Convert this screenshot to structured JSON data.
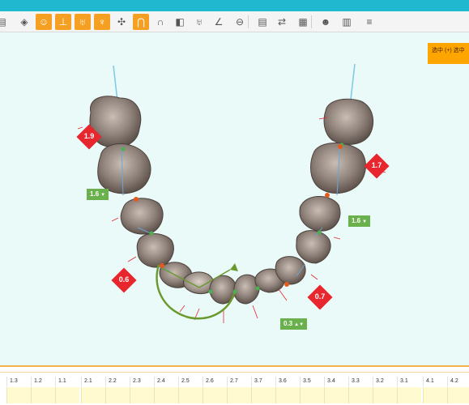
{
  "toolbar": {
    "tools": [
      {
        "name": "menu-icon",
        "glyph": "▤",
        "active": false
      },
      {
        "name": "tooth-model-icon",
        "glyph": "◈",
        "active": false
      },
      {
        "name": "smile-icon",
        "glyph": "☺",
        "active": true
      },
      {
        "name": "measure-icon",
        "glyph": "⊥",
        "active": true
      },
      {
        "name": "tooth-icon",
        "glyph": "♅",
        "active": true
      },
      {
        "name": "tooth-alt-icon",
        "glyph": "♆",
        "active": true
      },
      {
        "name": "tooth-move-icon",
        "glyph": "✣",
        "active": false
      },
      {
        "name": "arch-box-icon",
        "glyph": "⋂",
        "active": true
      },
      {
        "name": "arch-icon",
        "glyph": "∩",
        "active": false
      },
      {
        "name": "split-icon",
        "glyph": "◧",
        "active": false
      },
      {
        "name": "tooth-gray-icon",
        "glyph": "♅",
        "active": false
      },
      {
        "name": "graph-icon",
        "glyph": "∠",
        "active": false
      },
      {
        "name": "ruler-icon",
        "glyph": "⊖",
        "active": false
      },
      {
        "name": "document-icon",
        "glyph": "▤",
        "active": false
      },
      {
        "name": "rotate-icon",
        "glyph": "⇄",
        "active": false
      },
      {
        "name": "clipboard-icon",
        "glyph": "▦",
        "active": false
      },
      {
        "name": "head-icon",
        "glyph": "☻",
        "active": false
      },
      {
        "name": "calendar-icon",
        "glyph": "▥",
        "active": false
      },
      {
        "name": "notes-icon",
        "glyph": "≡",
        "active": false
      }
    ]
  },
  "status": {
    "text": "选中 (+) 选中"
  },
  "badges": {
    "red": [
      "1.9",
      "1.7",
      "0.6",
      "0.7"
    ],
    "green": [
      "1.6",
      "1.6",
      "0.3"
    ]
  },
  "timeline": {
    "labels": [
      "1.3",
      "1.2",
      "1.1",
      "2.1",
      "2.2",
      "2.3",
      "2.4",
      "2.5",
      "2.6",
      "2.7",
      "3.7",
      "3.6",
      "3.5",
      "3.4",
      "3.3",
      "3.2",
      "3.1",
      "4.1",
      "4.2"
    ]
  },
  "colors": {
    "header": "#1fb8cf",
    "accent": "#f6a023",
    "badge_red": "#e8262e",
    "badge_green": "#6ab04c",
    "background": "#eafaf8"
  }
}
